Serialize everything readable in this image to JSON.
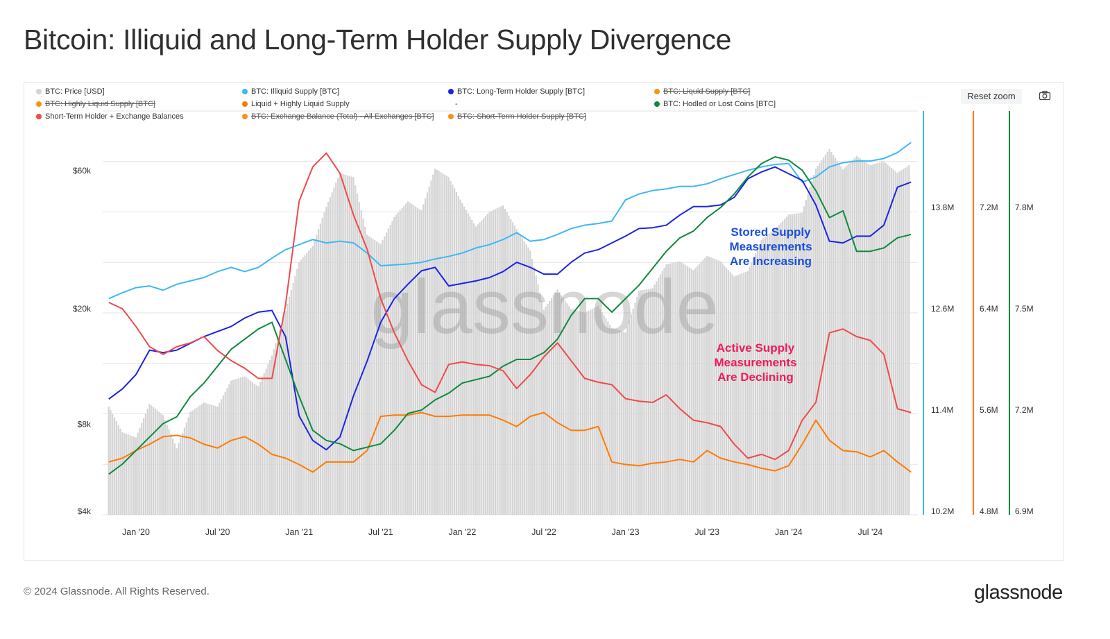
{
  "title": "Bitcoin: Illiquid and Long-Term Holder Supply Divergence",
  "footer": "© 2024 Glassnode. All Rights Reserved.",
  "logo": "glassnode",
  "watermark": "glassnode",
  "controls": {
    "reset_zoom": "Reset zoom",
    "camera_icon": "camera-icon"
  },
  "legend": [
    {
      "label": "BTC: Price [USD]",
      "color": "#d4d4d4",
      "hidden": false
    },
    {
      "label": "BTC: Illiquid Supply [BTC]",
      "color": "#3db8f5",
      "hidden": false
    },
    {
      "label": "BTC: Long-Term Holder Supply [BTC]",
      "color": "#1a22e8",
      "hidden": false
    },
    {
      "label": "BTC: Liquid Supply [BTC]",
      "color": "#f7931a",
      "hidden": true
    },
    {
      "label": "BTC: Highly Liquid Supply [BTC]",
      "color": "#f7931a",
      "hidden": true
    },
    {
      "label": "Liquid + Highly Liquid Supply",
      "color": "#ff7a00",
      "hidden": false
    },
    {
      "label": "-",
      "color": "",
      "hidden": false
    },
    {
      "label": "BTC: Hodled or Lost Coins [BTC]",
      "color": "#0b8a3c",
      "hidden": false
    },
    {
      "label": "Short-Term Holder + Exchange Balances",
      "color": "#f24848",
      "hidden": false
    },
    {
      "label": "BTC: Exchange Balance (Total) - All Exchanges [BTC]",
      "color": "#f7931a",
      "hidden": true
    },
    {
      "label": "BTC: Short-Term Holder Supply [BTC]",
      "color": "#f7931a",
      "hidden": true
    }
  ],
  "chart_data": {
    "type": "line",
    "title": "Bitcoin: Illiquid and Long-Term Holder Supply Divergence",
    "grid": true,
    "legend_placement": "top",
    "x_ticks": [
      "Jan '20",
      "Jul '20",
      "Jan '21",
      "Jul '21",
      "Jan '22",
      "Jul '22",
      "Jan '23",
      "Jul '23",
      "Jan '24",
      "Jul '24"
    ],
    "x_tick_dates": [
      "2020-01",
      "2020-07",
      "2021-01",
      "2021-07",
      "2022-01",
      "2022-07",
      "2023-01",
      "2023-07",
      "2024-01",
      "2024-07"
    ],
    "axes": {
      "price": {
        "scale": "log",
        "ticks": [
          "$60k",
          "$20k",
          "$8k",
          "$4k"
        ],
        "tick_values": [
          60000,
          20000,
          8000,
          4000
        ],
        "range": [
          4000,
          60000
        ]
      },
      "illiquid": {
        "scale": "linear",
        "color": "#3db8f5",
        "ticks": [
          "13.8M",
          "12.6M",
          "11.4M",
          "10.2M"
        ],
        "tick_values": [
          13.8,
          12.6,
          11.4,
          10.2
        ],
        "unit": "M BTC"
      },
      "liquid": {
        "scale": "linear",
        "color": "#ff7a00",
        "ticks": [
          "7.2M",
          "6.4M",
          "5.6M",
          "4.8M"
        ],
        "tick_values": [
          7.2,
          6.4,
          5.6,
          4.8
        ],
        "unit": "M BTC"
      },
      "hodled": {
        "scale": "linear",
        "color": "#0b8a3c",
        "ticks": [
          "7.8M",
          "7.5M",
          "7.2M",
          "6.9M"
        ],
        "tick_values": [
          7.8,
          7.5,
          7.2,
          6.9
        ],
        "unit": "M BTC"
      }
    },
    "x": [
      "2019-11",
      "2019-12",
      "2020-01",
      "2020-02",
      "2020-03",
      "2020-04",
      "2020-05",
      "2020-06",
      "2020-07",
      "2020-08",
      "2020-09",
      "2020-10",
      "2020-11",
      "2020-12",
      "2021-01",
      "2021-02",
      "2021-03",
      "2021-04",
      "2021-05",
      "2021-06",
      "2021-07",
      "2021-08",
      "2021-09",
      "2021-10",
      "2021-11",
      "2021-12",
      "2022-01",
      "2022-02",
      "2022-03",
      "2022-04",
      "2022-05",
      "2022-06",
      "2022-07",
      "2022-08",
      "2022-09",
      "2022-10",
      "2022-11",
      "2022-12",
      "2023-01",
      "2023-02",
      "2023-03",
      "2023-04",
      "2023-05",
      "2023-06",
      "2023-07",
      "2023-08",
      "2023-09",
      "2023-10",
      "2023-11",
      "2023-12",
      "2024-01",
      "2024-02",
      "2024-03",
      "2024-04",
      "2024-05",
      "2024-06",
      "2024-07",
      "2024-08",
      "2024-09",
      "2024-10"
    ],
    "series": [
      {
        "name": "BTC: Price [USD]",
        "axis": "price",
        "kind": "bars",
        "color": "#d4d4d4",
        "values": [
          9200,
          7500,
          7200,
          9400,
          8600,
          6600,
          8800,
          9500,
          9200,
          11300,
          11700,
          10800,
          13800,
          19700,
          29000,
          33000,
          45000,
          58800,
          57000,
          36000,
          33500,
          41500,
          47000,
          43800,
          61000,
          57000,
          46300,
          38500,
          43200,
          45500,
          37700,
          31800,
          19900,
          23300,
          20000,
          19400,
          20500,
          17200,
          16600,
          23100,
          23600,
          28500,
          29200,
          27200,
          30500,
          29200,
          25900,
          27000,
          34600,
          37700,
          42300,
          43000,
          61000,
          71300,
          60600,
          67500,
          62700,
          64600,
          59000,
          63300
        ]
      },
      {
        "name": "BTC: Illiquid Supply [BTC]",
        "axis": "illiquid",
        "color": "#3db8f5",
        "values": [
          12.72,
          12.79,
          12.85,
          12.87,
          12.82,
          12.89,
          12.93,
          12.97,
          13.04,
          13.09,
          13.04,
          13.09,
          13.2,
          13.3,
          13.36,
          13.42,
          13.38,
          13.4,
          13.38,
          13.26,
          13.11,
          13.12,
          13.13,
          13.15,
          13.19,
          13.22,
          13.26,
          13.32,
          13.36,
          13.42,
          13.5,
          13.4,
          13.42,
          13.48,
          13.55,
          13.59,
          13.61,
          13.64,
          13.89,
          13.96,
          14.0,
          14.02,
          14.05,
          14.05,
          14.08,
          14.14,
          14.19,
          14.24,
          14.28,
          14.31,
          14.32,
          14.1,
          14.16,
          14.28,
          14.33,
          14.35,
          14.35,
          14.38,
          14.45,
          14.57
        ]
      },
      {
        "name": "BTC: Long-Term Holder Supply [BTC]",
        "axis": "illiquid",
        "color": "#1a22e8",
        "values": [
          11.53,
          11.65,
          11.82,
          12.11,
          12.08,
          12.11,
          12.19,
          12.27,
          12.33,
          12.39,
          12.49,
          12.56,
          12.58,
          12.27,
          11.33,
          11.04,
          10.93,
          11.08,
          11.57,
          11.98,
          12.44,
          12.72,
          12.89,
          13.05,
          13.09,
          12.87,
          12.9,
          12.93,
          12.97,
          13.04,
          13.15,
          13.09,
          13.01,
          13.01,
          13.15,
          13.26,
          13.3,
          13.38,
          13.46,
          13.55,
          13.56,
          13.59,
          13.71,
          13.81,
          13.81,
          13.83,
          13.92,
          14.14,
          14.22,
          14.28,
          14.2,
          14.12,
          13.83,
          13.4,
          13.38,
          13.46,
          13.46,
          13.59,
          14.04,
          14.1
        ]
      },
      {
        "name": "Liquid + Highly Liquid Supply",
        "axis": "liquid",
        "color": "#ff7a00",
        "values": [
          5.19,
          5.22,
          5.28,
          5.33,
          5.39,
          5.4,
          5.38,
          5.33,
          5.3,
          5.36,
          5.39,
          5.33,
          5.25,
          5.22,
          5.17,
          5.11,
          5.19,
          5.19,
          5.19,
          5.28,
          5.55,
          5.56,
          5.56,
          5.58,
          5.55,
          5.55,
          5.56,
          5.56,
          5.56,
          5.52,
          5.47,
          5.55,
          5.58,
          5.5,
          5.44,
          5.44,
          5.47,
          5.19,
          5.17,
          5.16,
          5.18,
          5.19,
          5.21,
          5.19,
          5.28,
          5.22,
          5.19,
          5.17,
          5.14,
          5.12,
          5.16,
          5.33,
          5.52,
          5.36,
          5.28,
          5.27,
          5.23,
          5.28,
          5.19,
          5.11
        ]
      },
      {
        "name": "BTC: Hodled or Lost Coins [BTC]",
        "axis": "hodled",
        "color": "#0b8a3c",
        "values": [
          7.01,
          7.04,
          7.08,
          7.12,
          7.16,
          7.18,
          7.24,
          7.28,
          7.33,
          7.38,
          7.41,
          7.44,
          7.46,
          7.35,
          7.24,
          7.14,
          7.11,
          7.1,
          7.08,
          7.09,
          7.1,
          7.14,
          7.19,
          7.2,
          7.23,
          7.25,
          7.28,
          7.29,
          7.3,
          7.33,
          7.35,
          7.35,
          7.37,
          7.41,
          7.48,
          7.53,
          7.53,
          7.49,
          7.53,
          7.57,
          7.62,
          7.67,
          7.71,
          7.73,
          7.77,
          7.8,
          7.84,
          7.89,
          7.93,
          7.95,
          7.94,
          7.91,
          7.85,
          7.77,
          7.79,
          7.67,
          7.67,
          7.68,
          7.71,
          7.72
        ]
      },
      {
        "name": "Short-Term Holder + Exchange Balances",
        "axis": "liquid",
        "color": "#f24848",
        "values": [
          6.45,
          6.4,
          6.26,
          6.1,
          6.04,
          6.1,
          6.13,
          6.18,
          6.07,
          5.99,
          5.93,
          5.85,
          5.85,
          6.43,
          7.25,
          7.52,
          7.63,
          7.47,
          7.14,
          6.87,
          6.48,
          6.21,
          5.99,
          5.8,
          5.74,
          5.96,
          5.98,
          5.96,
          5.95,
          5.91,
          5.77,
          5.88,
          6.02,
          6.13,
          5.99,
          5.85,
          5.82,
          5.8,
          5.69,
          5.67,
          5.66,
          5.72,
          5.61,
          5.52,
          5.5,
          5.47,
          5.33,
          5.22,
          5.25,
          5.21,
          5.28,
          5.52,
          5.66,
          6.21,
          6.24,
          6.18,
          6.15,
          6.04,
          5.61,
          5.58
        ]
      }
    ],
    "annotations": [
      {
        "text": [
          "Stored Supply",
          "Measurements",
          "Are Increasing"
        ],
        "color": "#1a4fe0"
      },
      {
        "text": [
          "Active Supply",
          "Measurements",
          "Are Declining"
        ],
        "color": "#ee1c5c"
      }
    ]
  }
}
